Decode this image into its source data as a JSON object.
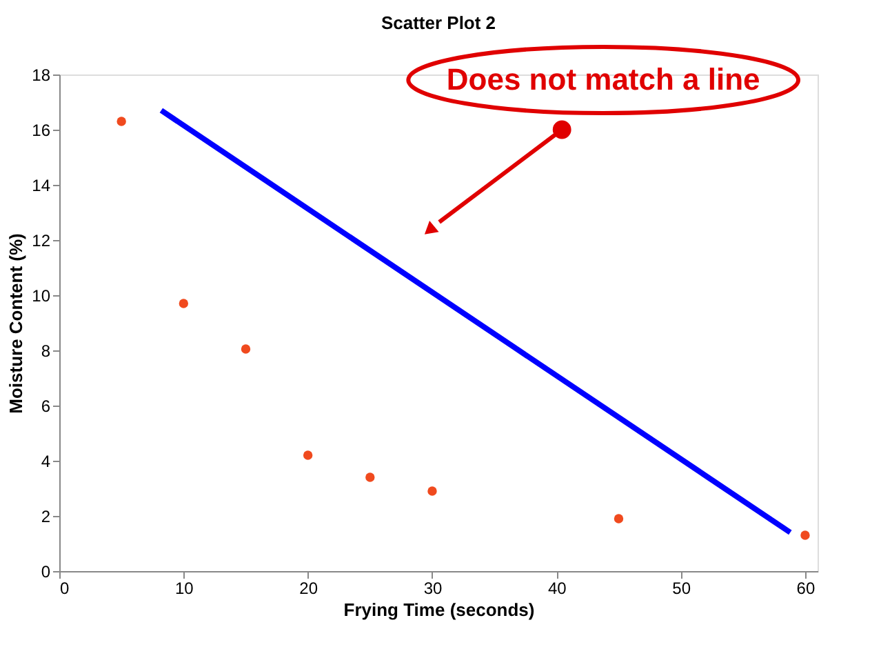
{
  "chart_data": {
    "type": "scatter",
    "title": "Scatter Plot 2",
    "xlabel": "Frying Time (seconds)",
    "ylabel": "Moisture Content (%)",
    "x": [
      5,
      10,
      15,
      20,
      25,
      30,
      45,
      60
    ],
    "series": [
      {
        "type": "scatter",
        "color": "#f04a1e",
        "values": [
          16.3,
          9.7,
          8.05,
          4.2,
          3.4,
          2.9,
          1.9,
          1.3
        ]
      },
      {
        "type": "line",
        "marker": "none",
        "color": "#0000ff",
        "x": [
          8.2,
          58.8
        ],
        "values": [
          16.7,
          1.4
        ]
      }
    ],
    "annotations": [
      {
        "text": "Does not match a line",
        "x": 29.9,
        "y": 12.4
      }
    ],
    "xlim": [
      0,
      61
    ],
    "ylim": [
      0,
      18
    ],
    "xticks": [
      0,
      10,
      20,
      30,
      40,
      50,
      60
    ],
    "yticks": [
      0,
      2,
      4,
      6,
      8,
      10,
      12,
      14,
      16,
      18
    ],
    "grid": false,
    "marker": "circle"
  }
}
